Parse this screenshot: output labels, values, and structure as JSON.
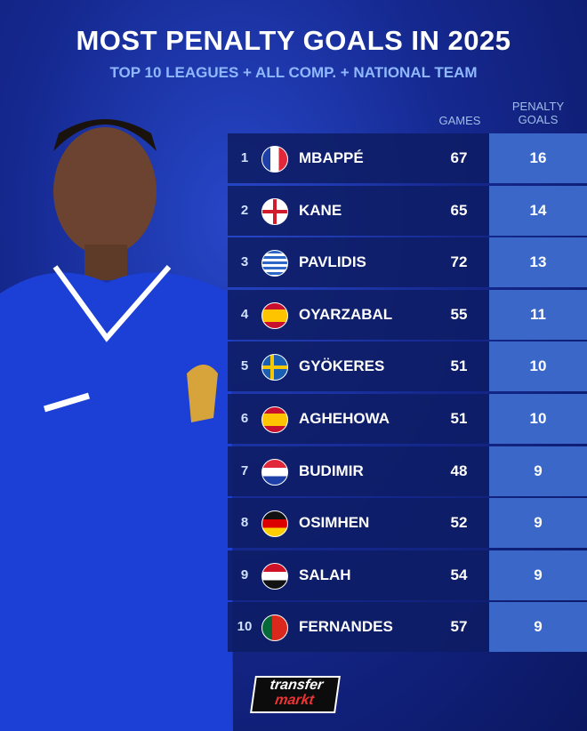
{
  "header": {
    "title": "MOST PENALTY GOALS IN 2025",
    "subtitle": "TOP 10 LEAGUES + ALL COMP. + NATIONAL TEAM"
  },
  "table": {
    "columns": [
      "GAMES",
      "PENALTY GOALS"
    ],
    "rows": [
      [
        1,
        "MBAPPÉ",
        67,
        16
      ],
      [
        2,
        "KANE",
        65,
        14
      ],
      [
        3,
        "PAVLIDIS",
        72,
        13
      ],
      [
        4,
        "OYARZABAL",
        55,
        11
      ],
      [
        5,
        "GYÖKERES",
        51,
        10
      ],
      [
        6,
        "AGHEHOWA",
        51,
        10
      ],
      [
        7,
        "BUDIMIR",
        48,
        9
      ],
      [
        8,
        "OSIMHEN",
        52,
        9
      ],
      [
        9,
        "SALAH",
        54,
        9
      ],
      [
        10,
        "FERNANDES",
        57,
        9
      ]
    ]
  },
  "logo": [
    "transfer",
    "markt"
  ]
}
